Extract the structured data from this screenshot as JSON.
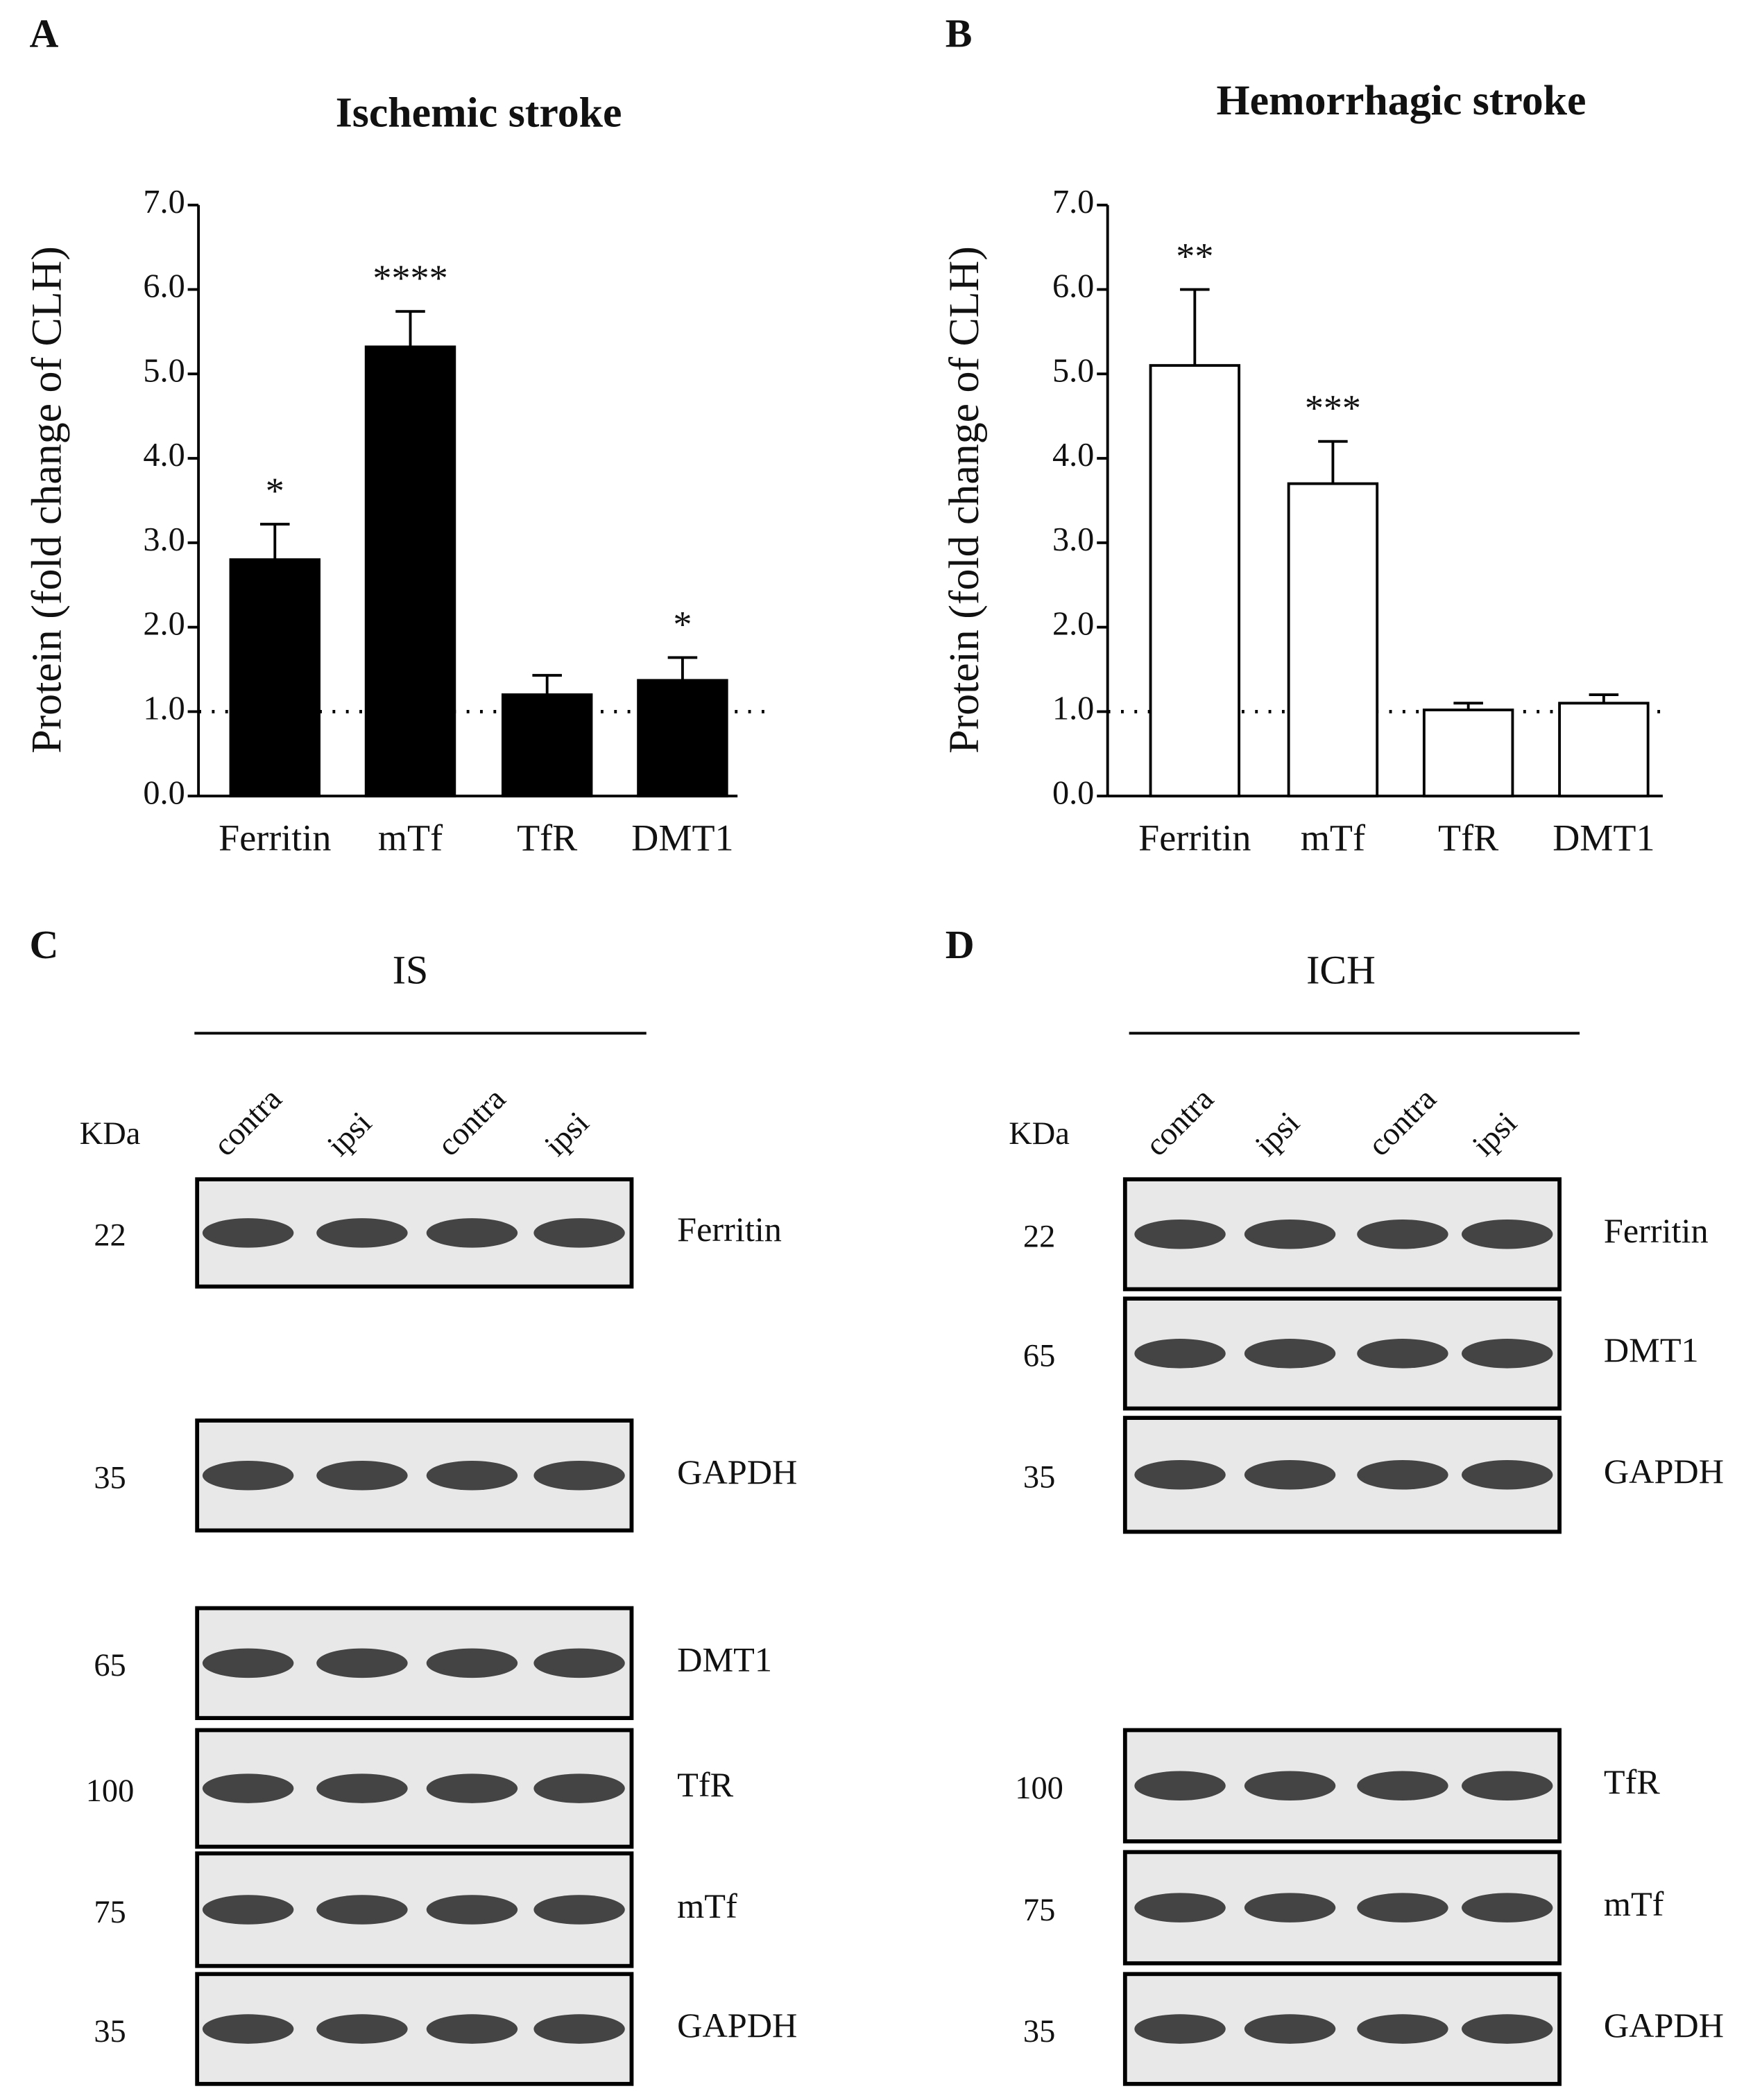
{
  "chart_data": [
    {
      "type": "bar",
      "panel": "A",
      "title": "Ischemic stroke",
      "ylabel": "Protein (fold change of CLH)",
      "categories": [
        "Ferritin",
        "mTf",
        "TfR",
        "DMT1"
      ],
      "values": [
        2.8,
        5.32,
        1.2,
        1.37
      ],
      "errors": [
        0.42,
        0.42,
        0.23,
        0.27
      ],
      "significance": [
        "*",
        "****",
        null,
        "*"
      ],
      "color": "#000000",
      "edge_color": "#000000",
      "reference_line": 1,
      "ylim": [
        0,
        7
      ],
      "yticks": [
        {
          "value": 0,
          "label": "0.0"
        },
        {
          "value": 1,
          "label": "1.0"
        },
        {
          "value": 2,
          "label": "2.0"
        },
        {
          "value": 3,
          "label": "3.0"
        },
        {
          "value": 4,
          "label": "4.0"
        },
        {
          "value": 5,
          "label": "5.0"
        },
        {
          "value": 6,
          "label": "6.0"
        },
        {
          "value": 7,
          "label": "7.0"
        }
      ]
    },
    {
      "type": "bar",
      "panel": "B",
      "title": "Hemorrhagic stroke",
      "ylabel": "Protein (fold change of CLH)",
      "categories": [
        "Ferritin",
        "mTf",
        "TfR",
        "DMT1"
      ],
      "values": [
        5.1,
        3.7,
        1.02,
        1.1
      ],
      "errors": [
        0.9,
        0.5,
        0.08,
        0.1
      ],
      "significance": [
        "**",
        "***",
        null,
        null
      ],
      "color": "#ffffff",
      "edge_color": "#000000",
      "reference_line": 1,
      "ylim": [
        0,
        7
      ],
      "yticks": [
        {
          "value": 0,
          "label": "0.0"
        },
        {
          "value": 1,
          "label": "1.0"
        },
        {
          "value": 2,
          "label": "2.0"
        },
        {
          "value": 3,
          "label": "3.0"
        },
        {
          "value": 4,
          "label": "4.0"
        },
        {
          "value": 5,
          "label": "5.0"
        },
        {
          "value": 6,
          "label": "6.0"
        },
        {
          "value": 7,
          "label": "7.0"
        }
      ]
    }
  ],
  "blots": [
    {
      "panel": "C",
      "group": "IS",
      "kda_header": "KDa",
      "lanes": [
        "contra",
        "ipsi",
        "contra",
        "ipsi"
      ],
      "rows": [
        {
          "kda": 22,
          "protein": "Ferritin"
        },
        {
          "kda": 35,
          "protein": "GAPDH"
        },
        {
          "kda": 65,
          "protein": "DMT1"
        },
        {
          "kda": 100,
          "protein": "TfR"
        },
        {
          "kda": 75,
          "protein": "mTf"
        },
        {
          "kda": 35,
          "protein": "GAPDH"
        }
      ]
    },
    {
      "panel": "D",
      "group": "ICH",
      "kda_header": "KDa",
      "lanes": [
        "contra",
        "ipsi",
        "contra",
        "ipsi"
      ],
      "rows": [
        {
          "kda": 22,
          "protein": "Ferritin"
        },
        {
          "kda": 65,
          "protein": "DMT1"
        },
        {
          "kda": 35,
          "protein": "GAPDH"
        },
        {
          "kda": 100,
          "protein": "TfR"
        },
        {
          "kda": 75,
          "protein": "mTf"
        },
        {
          "kda": 35,
          "protein": "GAPDH"
        }
      ]
    }
  ]
}
